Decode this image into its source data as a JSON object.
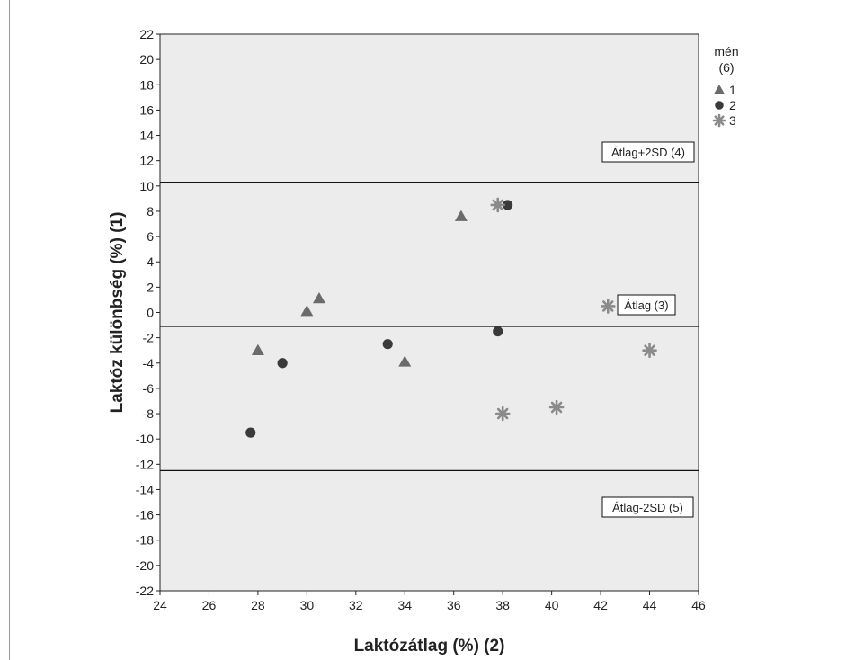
{
  "chart_data": {
    "type": "scatter",
    "xlabel": "Laktózátlag (%) (2)",
    "ylabel": "Laktóz különbség (%) (1)",
    "xlim": [
      24,
      46
    ],
    "ylim": [
      -22,
      22
    ],
    "x_ticks": [
      24,
      26,
      28,
      30,
      32,
      34,
      36,
      38,
      40,
      42,
      44,
      46
    ],
    "y_ticks": [
      22,
      20,
      18,
      16,
      14,
      12,
      10,
      8,
      6,
      4,
      2,
      0,
      -2,
      -4,
      -6,
      -8,
      -10,
      -12,
      -14,
      -16,
      -18,
      -20,
      -22
    ],
    "grid": false,
    "legend": {
      "title_line1": "mén",
      "title_line2": "(6)",
      "placement": "right"
    },
    "series": [
      {
        "name": "1",
        "marker": "triangle",
        "color": "#6b6b6b",
        "points": [
          {
            "x": 28.0,
            "y": -3.0
          },
          {
            "x": 30.0,
            "y": 0.1
          },
          {
            "x": 30.5,
            "y": 1.1
          },
          {
            "x": 34.0,
            "y": -3.9
          },
          {
            "x": 36.3,
            "y": 7.6
          }
        ]
      },
      {
        "name": "2",
        "marker": "circle",
        "color": "#3a3a3a",
        "points": [
          {
            "x": 27.7,
            "y": -9.5
          },
          {
            "x": 29.0,
            "y": -4.0
          },
          {
            "x": 33.3,
            "y": -2.5
          },
          {
            "x": 37.8,
            "y": -1.5
          },
          {
            "x": 38.2,
            "y": 8.5
          }
        ]
      },
      {
        "name": "3",
        "marker": "asterisk",
        "color": "#8a8a8a",
        "points": [
          {
            "x": 37.8,
            "y": 8.5
          },
          {
            "x": 38.0,
            "y": -8.0
          },
          {
            "x": 40.2,
            "y": -7.5
          },
          {
            "x": 42.3,
            "y": 0.5
          },
          {
            "x": 44.0,
            "y": -3.0
          }
        ]
      }
    ],
    "reference_lines": [
      {
        "y": 10.3,
        "label": "Átlag+2SD (4)"
      },
      {
        "y": -1.1,
        "label": "Átlag (3)"
      },
      {
        "y": -12.5,
        "label": "Átlag-2SD (5)"
      }
    ],
    "colors": {
      "plot_background": "#ececec",
      "axis": "#222222",
      "reference_line": "#111111"
    }
  }
}
